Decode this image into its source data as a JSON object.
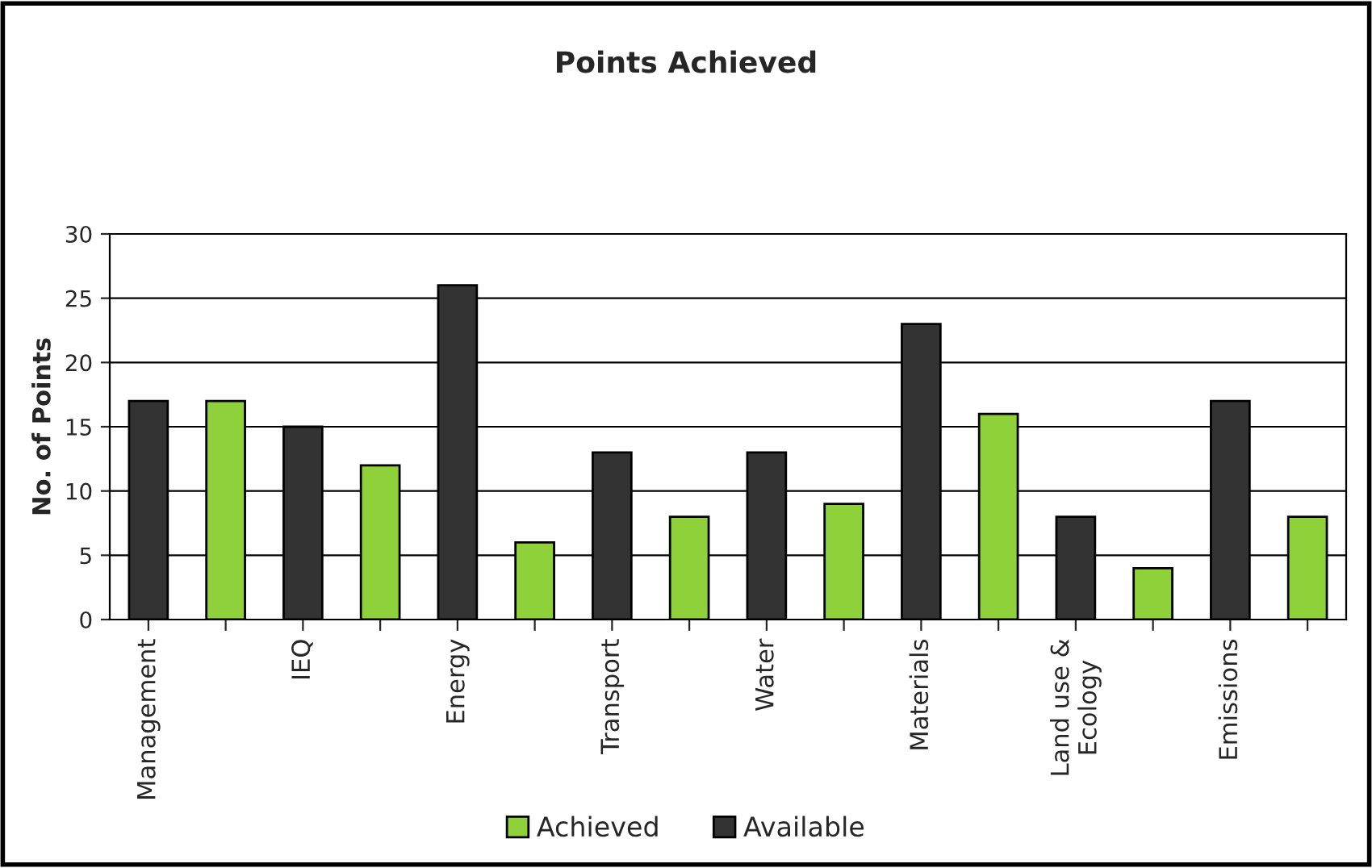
{
  "chart_data": {
    "type": "bar",
    "title": "Points Achieved",
    "ylabel": "No. of Points",
    "categories": [
      "Management",
      null,
      "IEQ",
      null,
      "Energy",
      null,
      "Transport",
      null,
      "Water",
      null,
      "Materials",
      null,
      "Land use &\nEcology",
      null,
      "Emissions",
      null
    ],
    "series": [
      {
        "name": "Achieved",
        "color": "#8fd13a",
        "values": [
          null,
          17,
          null,
          12,
          null,
          6,
          null,
          8,
          null,
          9,
          null,
          16,
          null,
          4,
          null,
          8
        ]
      },
      {
        "name": "Available",
        "color": "#333333",
        "values": [
          17,
          null,
          15,
          null,
          26,
          null,
          13,
          null,
          13,
          null,
          23,
          null,
          8,
          null,
          17,
          null
        ]
      }
    ],
    "ylim": [
      0,
      30
    ],
    "yticks": [
      0,
      5,
      10,
      15,
      20,
      25,
      30
    ],
    "grid": "y",
    "legend": "bottom"
  }
}
